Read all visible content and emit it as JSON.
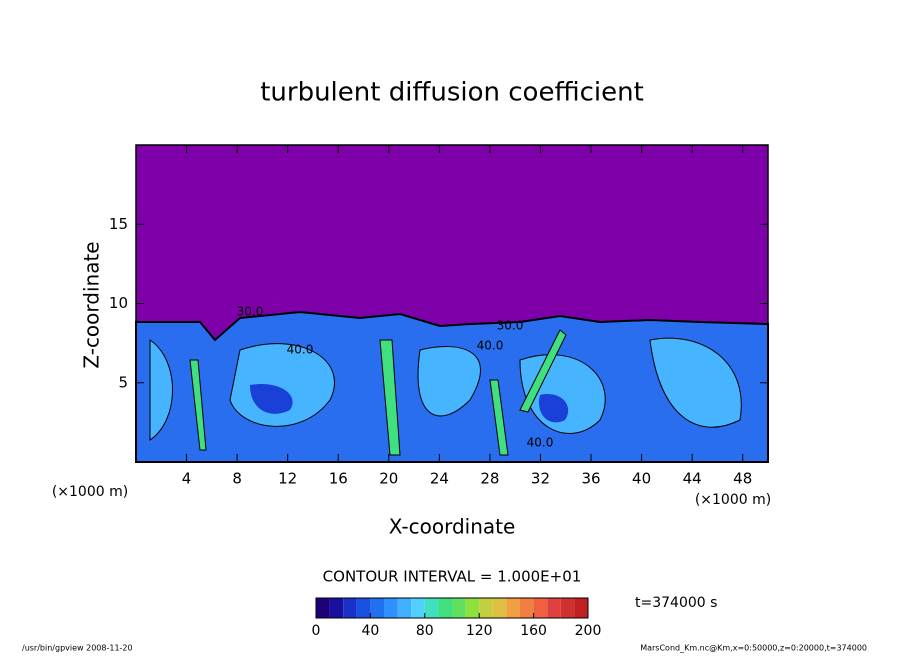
{
  "chart_data": {
    "type": "contour",
    "title": "turbulent diffusion coefficient",
    "xlabel": "X-coordinate",
    "ylabel": "Z-coordinate",
    "x_unit_labels": [
      "(×1000 m)",
      "(×1000 m)"
    ],
    "xlim": [
      0,
      50
    ],
    "xticks": [
      4,
      8,
      12,
      16,
      20,
      24,
      28,
      32,
      36,
      40,
      44,
      48
    ],
    "ylim": [
      0,
      20
    ],
    "yticks": [
      5,
      10,
      15
    ],
    "annotations": [
      "30.0",
      "40.0",
      "40.0",
      "30.0",
      "40.0"
    ],
    "contour_interval": "CONTOUR INTERVAL = 1.000E+01",
    "time_label": "t=374000 s",
    "colorbar": {
      "lim": [
        0,
        200
      ],
      "ticks": [
        0,
        40,
        80,
        120,
        160,
        200
      ],
      "levels": [
        0,
        10,
        20,
        30,
        40,
        50,
        60,
        70,
        80,
        90,
        100,
        110,
        120,
        130,
        140,
        150,
        160,
        170,
        180,
        190,
        200
      ],
      "colors": [
        "#20007a",
        "#1a10a0",
        "#1a30c8",
        "#1a50e0",
        "#2070f0",
        "#3090ff",
        "#40b0ff",
        "#50d0ff",
        "#40e0c0",
        "#40e080",
        "#60e060",
        "#90e040",
        "#c0d040",
        "#e0c040",
        "#f0a040",
        "#f08040",
        "#f06040",
        "#e04040",
        "#d03030",
        "#c02020"
      ]
    }
  },
  "footer": {
    "left": "/usr/bin/gpview   2008-11-20",
    "right": "MarsCond_Km.nc@Km,x=0:50000,z=0:20000,t=374000"
  }
}
